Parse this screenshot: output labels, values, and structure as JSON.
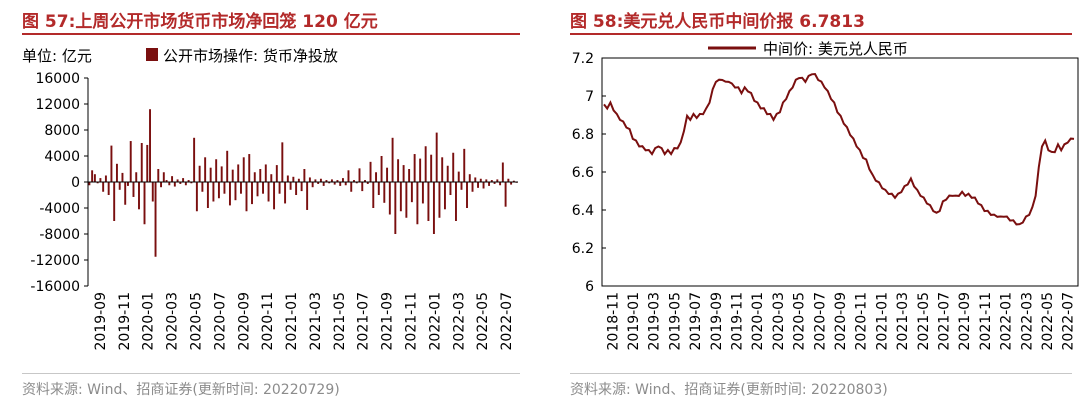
{
  "left_panel": {
    "title": "图 57:上周公开市场货币市场净回笼 120 亿元",
    "unit_label": "单位: 亿元",
    "source": "资料来源: Wind、招商证券(更新时间: 20220729)"
  },
  "right_panel": {
    "title": "图 58:美元兑人民币中间价报 6.7813",
    "source": "资料来源: Wind、招商证券(更新时间: 20220803)"
  },
  "colors": {
    "title": "#b32a2a",
    "series": "#7a0f0f",
    "source_text": "#8c8c8c"
  },
  "chart_data": [
    {
      "type": "bar",
      "title": "上周公开市场货币市场净回笼 120 亿元",
      "ylabel": "亿元",
      "ylim": [
        -16000,
        16000
      ],
      "yticks": [
        -16000,
        -12000,
        -8000,
        -4000,
        0,
        4000,
        8000,
        12000,
        16000
      ],
      "xticks": [
        "2019-09",
        "2019-11",
        "2020-01",
        "2020-03",
        "2020-05",
        "2020-07",
        "2020-09",
        "2020-11",
        "2021-01",
        "2021-03",
        "2021-05",
        "2021-07",
        "2021-09",
        "2021-11",
        "2022-01",
        "2022-03",
        "2022-05",
        "2022-07"
      ],
      "legend": "top-left",
      "series": [
        {
          "name": "公开市场操作: 货币净投放",
          "x_start": "2019-09",
          "x_end": "2022-08",
          "values": [
            -500,
            1800,
            1200,
            -200,
            600,
            -1500,
            1000,
            -2000,
            5600,
            -6000,
            2800,
            -1200,
            1400,
            -3500,
            -600,
            6300,
            -2300,
            1500,
            -4200,
            6000,
            -6500,
            5700,
            11200,
            -3000,
            -11500,
            2000,
            -800,
            1500,
            300,
            -500,
            900,
            -700,
            400,
            -300,
            600,
            -500,
            300,
            -200,
            6800,
            -4500,
            2500,
            -1500,
            3800,
            -4000,
            2200,
            -3000,
            3500,
            -2500,
            2400,
            -1800,
            4800,
            -3600,
            1900,
            -2800,
            2700,
            -1800,
            3800,
            -4500,
            4300,
            -3400,
            1500,
            -2200,
            2000,
            -1800,
            2700,
            -3000,
            1200,
            -4200,
            2600,
            -1800,
            6100,
            -3300,
            1000,
            -1200,
            800,
            -2000,
            500,
            -1400,
            2000,
            -4300,
            700,
            -800,
            400,
            -300,
            500,
            -600,
            300,
            -200,
            400,
            -400,
            300,
            -600,
            600,
            -500,
            1800,
            -1500,
            300,
            -200,
            2100,
            -1400,
            300,
            -300,
            3100,
            -4000,
            1500,
            -2000,
            4000,
            -3200,
            2200,
            -5000,
            6800,
            -8000,
            3500,
            -4500,
            2600,
            -5500,
            2000,
            -3100,
            4300,
            -6500,
            3600,
            -3300,
            5500,
            -6000,
            4200,
            -8000,
            7600,
            -5500,
            3800,
            -4200,
            2500,
            -2000,
            4500,
            -6000,
            1600,
            -1200,
            5100,
            -4000,
            1200,
            -1500,
            700,
            -900,
            500,
            -1000,
            400,
            -600,
            300,
            -300,
            400,
            -500,
            3000,
            -3800,
            500,
            -400,
            200,
            -120
          ]
        }
      ]
    },
    {
      "type": "line",
      "title": "美元兑人民币中间价报 6.7813",
      "ylim": [
        6.0,
        7.2
      ],
      "yticks": [
        6.0,
        6.2,
        6.4,
        6.6,
        6.8,
        7.0,
        7.2
      ],
      "xticks": [
        "2018-11",
        "2019-01",
        "2019-03",
        "2019-05",
        "2019-07",
        "2019-09",
        "2019-11",
        "2020-01",
        "2020-03",
        "2020-05",
        "2020-07",
        "2020-09",
        "2020-11",
        "2021-01",
        "2021-03",
        "2021-05",
        "2021-07",
        "2021-09",
        "2021-11",
        "2022-01",
        "2022-03",
        "2022-05",
        "2022-07"
      ],
      "legend": "top-center",
      "series": [
        {
          "name": "中间价: 美元兑人民币",
          "x_start": "2018-11",
          "x_end": "2022-08",
          "values": [
            6.95,
            6.94,
            6.96,
            6.93,
            6.9,
            6.88,
            6.86,
            6.84,
            6.82,
            6.78,
            6.76,
            6.74,
            6.73,
            6.72,
            6.71,
            6.7,
            6.72,
            6.74,
            6.72,
            6.7,
            6.71,
            6.7,
            6.72,
            6.73,
            6.75,
            6.82,
            6.89,
            6.88,
            6.9,
            6.89,
            6.9,
            6.91,
            6.93,
            6.97,
            7.03,
            7.08,
            7.08,
            7.09,
            7.07,
            7.08,
            7.06,
            7.05,
            7.04,
            7.02,
            7.04,
            7.03,
            7.01,
            6.98,
            6.96,
            6.94,
            6.93,
            6.91,
            6.9,
            6.88,
            6.9,
            6.92,
            6.96,
            6.99,
            7.02,
            7.05,
            7.08,
            7.1,
            7.09,
            7.08,
            7.1,
            7.12,
            7.11,
            7.09,
            7.07,
            7.05,
            7.02,
            6.99,
            6.96,
            6.92,
            6.89,
            6.86,
            6.83,
            6.8,
            6.77,
            6.74,
            6.71,
            6.68,
            6.66,
            6.62,
            6.58,
            6.56,
            6.54,
            6.52,
            6.5,
            6.49,
            6.48,
            6.47,
            6.48,
            6.5,
            6.52,
            6.54,
            6.56,
            6.53,
            6.5,
            6.48,
            6.46,
            6.44,
            6.42,
            6.4,
            6.38,
            6.4,
            6.44,
            6.46,
            6.47,
            6.48,
            6.47,
            6.48,
            6.49,
            6.48,
            6.48,
            6.47,
            6.46,
            6.44,
            6.42,
            6.4,
            6.39,
            6.38,
            6.37,
            6.37,
            6.36,
            6.37,
            6.36,
            6.35,
            6.34,
            6.33,
            6.32,
            6.34,
            6.36,
            6.38,
            6.41,
            6.48,
            6.62,
            6.74,
            6.76,
            6.72,
            6.7,
            6.71,
            6.74,
            6.72,
            6.74,
            6.76,
            6.77,
            6.78
          ]
        }
      ]
    }
  ]
}
